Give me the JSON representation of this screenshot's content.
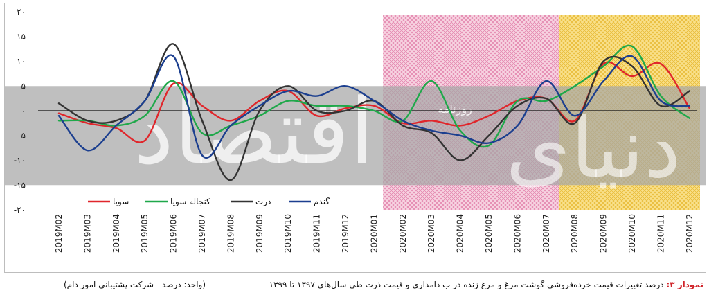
{
  "figure": {
    "label": "نمودار ۳:",
    "title": "درصد تغییرات قیمت خرده‌فروشی گوشت مرغ و مرغ زنده در ب دامداری و قیمت ذرت طی سال‌های ۱۳۹۷ تا ۱۳۹۹",
    "unit_note": "(واحد: درصد - شرکت پشتیبانی امور دام)"
  },
  "watermark": {
    "text": "اقتصاد",
    "text2": "دنیای",
    "small": "روزنامه"
  },
  "colors": {
    "sooya": "#e0262b",
    "konjaleh": "#1fa84a",
    "zorrat": "#333333",
    "gandom": "#1c3f8f",
    "pink_band": "#f2b8cf",
    "yellow_band": "#f5cf4a",
    "gray_band": "#a6a6a6"
  },
  "chart_data": {
    "type": "line",
    "categories": [
      "2019M02",
      "2019M03",
      "2019M04",
      "2019M05",
      "2019M06",
      "2019M07",
      "2019M08",
      "2019M09",
      "2019M10",
      "2019M11",
      "2019M12",
      "2020M01",
      "2020M02",
      "2020M03",
      "2020M04",
      "2020M05",
      "2020M06",
      "2020M07",
      "2020M08",
      "2020M09",
      "2020M10",
      "2020M11",
      "2020M12"
    ],
    "ylim": [
      -20,
      20
    ],
    "yticks": [
      {
        "v": 20,
        "label": "۲۰"
      },
      {
        "v": 15,
        "label": "۱۵"
      },
      {
        "v": 10,
        "label": "۱۰"
      },
      {
        "v": 5,
        "label": "۵"
      },
      {
        "v": 0,
        "label": "۰"
      },
      {
        "v": -5,
        "label": "-۵"
      },
      {
        "v": -10,
        "label": "-۱۰"
      },
      {
        "v": -15,
        "label": "-۱۵"
      },
      {
        "v": -20,
        "label": "-۲۰"
      }
    ],
    "shaded_ranges": [
      {
        "from": "2020M02",
        "to": "2020M07",
        "color": "pink"
      },
      {
        "from": "2020M08",
        "to": "2020M12",
        "color": "yellow"
      }
    ],
    "series": [
      {
        "name": "سویا",
        "key": "sooya",
        "values": [
          -0.5,
          -2.5,
          -3.5,
          -6,
          5.5,
          1,
          -2,
          2,
          4,
          -1,
          0.5,
          1,
          -2.5,
          -2,
          -3,
          -1,
          2,
          2.5,
          -2,
          9.5,
          7,
          9.5,
          0.5
        ]
      },
      {
        "name": "کنجاله سویا",
        "key": "konjaleh",
        "values": [
          -2,
          -2,
          -3,
          -1,
          6,
          -4.5,
          -3,
          -1,
          2,
          1,
          1,
          0,
          -2,
          6,
          -4,
          -7,
          2,
          2,
          5,
          9,
          13,
          3,
          -1.5
        ]
      },
      {
        "name": "ذرت",
        "key": "zorrat",
        "values": [
          1.5,
          -2,
          -2,
          2,
          13.5,
          -2,
          -14,
          0,
          5,
          0,
          0,
          2,
          -3,
          -4.5,
          -10,
          -5,
          1,
          2.5,
          -2.5,
          10,
          9,
          1,
          4
        ]
      },
      {
        "name": "گندم",
        "key": "gandom",
        "values": [
          -1,
          -8,
          -3,
          2,
          11,
          -9,
          -3,
          1,
          4,
          3,
          5,
          2,
          -2,
          -4,
          -5,
          -6.5,
          -3,
          6,
          -1,
          6,
          11,
          2,
          1
        ]
      }
    ]
  }
}
